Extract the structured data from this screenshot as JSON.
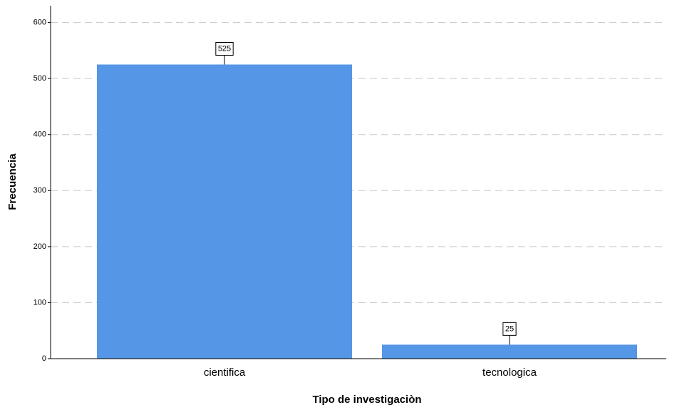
{
  "chart_data": {
    "type": "bar",
    "x_label": "Tipo de investigaciòn",
    "y_label": "Frecuencia",
    "categories": [
      "cientifica",
      "tecnologica"
    ],
    "values": [
      525,
      25
    ],
    "color": "#5596e6",
    "ylim": [
      0,
      630
    ],
    "yticks": [
      0,
      100,
      200,
      300,
      400,
      500,
      600
    ],
    "grid": true
  }
}
